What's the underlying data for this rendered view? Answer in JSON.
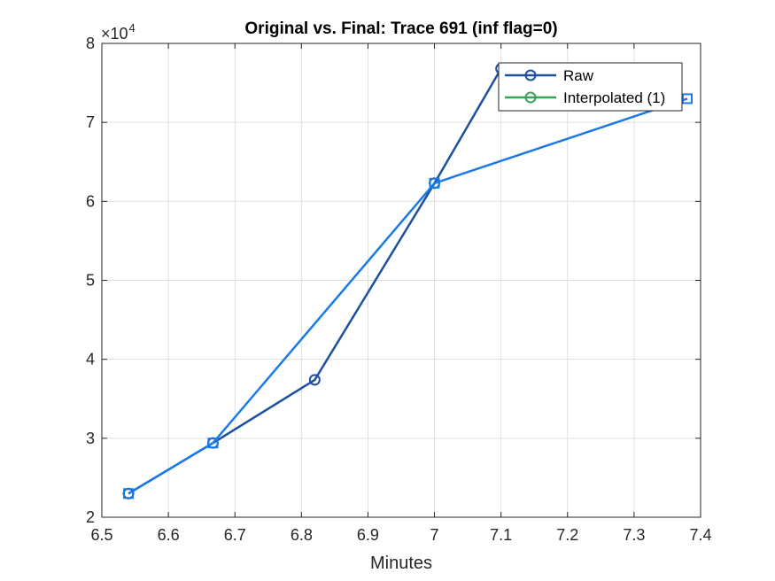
{
  "chart_data": {
    "type": "line",
    "title": "Original vs. Final: Trace 691 (inf flag=0)",
    "xlabel": "Minutes",
    "ylabel": "",
    "xlim": [
      6.5,
      7.4
    ],
    "ylim": [
      20000,
      80000
    ],
    "x_ticks": [
      "6.5",
      "6.6",
      "6.7",
      "6.8",
      "6.9",
      "7",
      "7.1",
      "7.2",
      "7.3",
      "7.4"
    ],
    "x_tick_values": [
      6.5,
      6.6,
      6.7,
      6.8,
      6.9,
      7.0,
      7.1,
      7.2,
      7.3,
      7.4
    ],
    "y_ticks": [
      "2",
      "3",
      "4",
      "5",
      "6",
      "7",
      "8"
    ],
    "y_tick_values": [
      20000,
      30000,
      40000,
      50000,
      60000,
      70000,
      80000
    ],
    "y_exponent_label": "×10",
    "y_exponent_power": "4",
    "grid": true,
    "legend_position": "top-right",
    "series": [
      {
        "name": "Raw",
        "color": "#1f4fa0",
        "marker": "circle",
        "x": [
          6.54,
          6.667,
          6.82,
          7.0,
          7.1
        ],
        "y": [
          23000,
          29400,
          37400,
          62300,
          76800
        ]
      },
      {
        "name": "Interpolated (1)",
        "color": "#3aa35a",
        "marker": "circle",
        "x": [],
        "y": []
      },
      {
        "name": "",
        "color": "#1a7ae8",
        "marker": "square",
        "x": [
          6.54,
          6.667,
          7.0,
          7.38
        ],
        "y": [
          23000,
          29400,
          62300,
          73000
        ]
      }
    ]
  }
}
